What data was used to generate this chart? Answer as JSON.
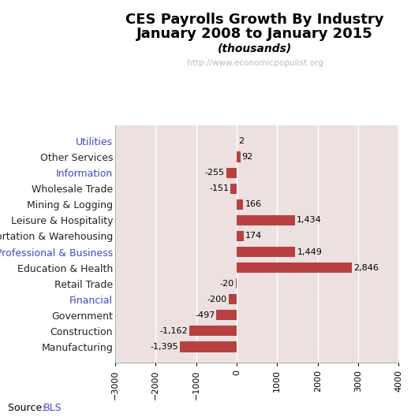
{
  "title_line1": "CES Payrolls Growth By Industry",
  "title_line2": "January 2008 to January 2015",
  "title_line3": "(thousands)",
  "watermark": "http://www.economicpopulist.org",
  "source_prefix": "Source: ",
  "source_bls": "BLS",
  "categories": [
    "Manufacturing",
    "Construction",
    "Government",
    "Financial",
    "Retail Trade",
    "Education & Health",
    "Professional & Business",
    "Transportation & Warehousing",
    "Leisure & Hospitality",
    "Mining & Logging",
    "Wholesale Trade",
    "Information",
    "Other Services",
    "Utilities"
  ],
  "values": [
    -1395,
    -1162,
    -497,
    -200,
    -20,
    2846,
    1449,
    174,
    1434,
    166,
    -151,
    -255,
    92,
    2
  ],
  "bar_color": "#b94040",
  "plot_bg_color": "#ede0e0",
  "fig_bg_color": "#ffffff",
  "xlim": [
    -3000,
    4000
  ],
  "xticks": [
    -3000,
    -2000,
    -1000,
    0,
    1000,
    2000,
    3000,
    4000
  ],
  "grid_color": "#ffffff",
  "label_colors": {
    "Utilities": "#4444cc",
    "Other Services": "#222222",
    "Information": "#4444cc",
    "Wholesale Trade": "#222222",
    "Mining & Logging": "#222222",
    "Leisure & Hospitality": "#222222",
    "Transportation & Warehousing": "#222222",
    "Professional & Business": "#4444cc",
    "Education & Health": "#222222",
    "Retail Trade": "#222222",
    "Financial": "#4444cc",
    "Government": "#222222",
    "Construction": "#222222",
    "Manufacturing": "#222222"
  },
  "title_fontsize": 13,
  "subtitle_fontsize": 10,
  "tick_fontsize": 8,
  "label_fontsize": 9,
  "value_fontsize": 8,
  "source_fontsize": 9,
  "watermark_color": "#bbbbbb",
  "source_color": "#4444cc"
}
